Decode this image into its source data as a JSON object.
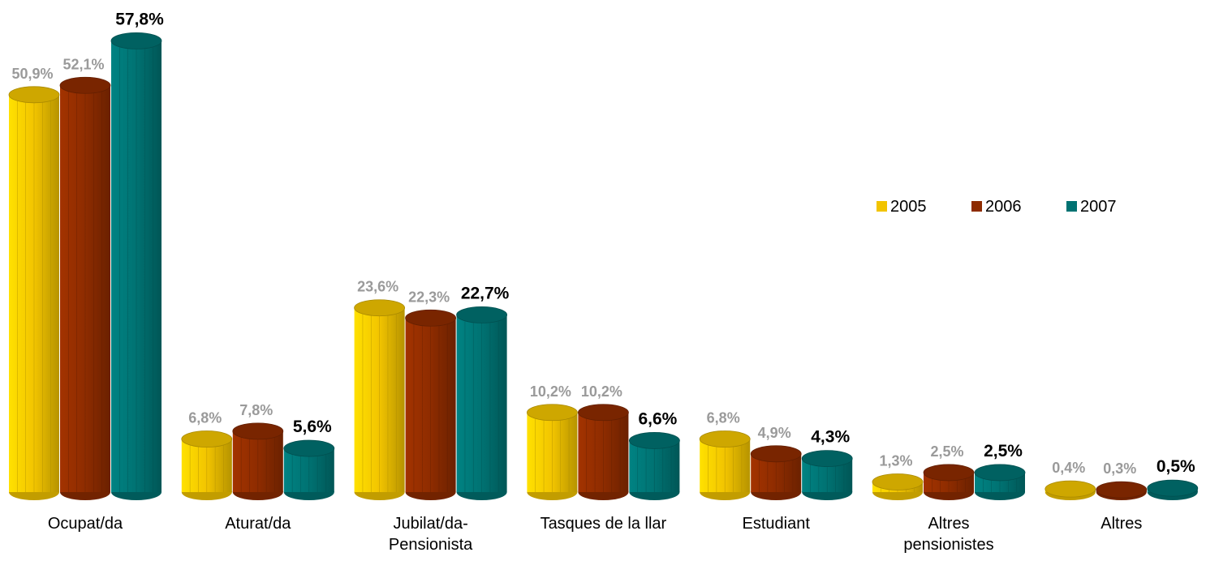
{
  "chart_data": {
    "type": "bar",
    "categories": [
      "Ocupat/da",
      "Aturat/da",
      "Jubilat/da-\nPensionista",
      "Tasques de la llar",
      "Estudiant",
      "Altres\npensionistes",
      "Altres"
    ],
    "series": [
      {
        "name": "2005",
        "color": "#f2c400",
        "label_color": "#9a9a9a",
        "values": [
          50.9,
          6.8,
          23.6,
          10.2,
          6.8,
          1.3,
          0.4
        ],
        "value_labels": [
          "50,9%",
          "6,8%",
          "23,6%",
          "10,2%",
          "6,8%",
          "1,3%",
          "0,4%"
        ]
      },
      {
        "name": "2006",
        "color": "#8e2c00",
        "label_color": "#9a9a9a",
        "values": [
          52.1,
          7.8,
          22.3,
          10.2,
          4.9,
          2.5,
          0.3
        ],
        "value_labels": [
          "52,1%",
          "7,8%",
          "22,3%",
          "10,2%",
          "4,9%",
          "2,5%",
          "0,3%"
        ]
      },
      {
        "name": "2007",
        "color": "#007272",
        "label_color": "#000000",
        "values": [
          57.8,
          5.6,
          22.7,
          6.6,
          4.3,
          2.5,
          0.5
        ],
        "value_labels": [
          "57,8%",
          "5,6%",
          "22,7%",
          "6,6%",
          "4,3%",
          "2,5%",
          "0,5%"
        ]
      }
    ],
    "legend": "right"
  }
}
